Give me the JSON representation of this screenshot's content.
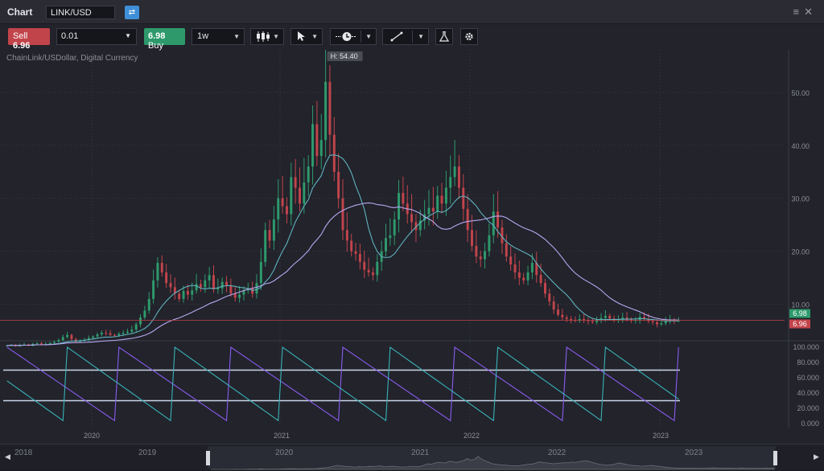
{
  "titlebar": {
    "title": "Chart",
    "symbol": "LINK/USD",
    "swap_icon": "swap-icon",
    "menu_icon": "hamburger-icon",
    "close_icon": "close-icon"
  },
  "toolbar": {
    "sell_label": "Sell",
    "sell_price": "6.96",
    "quantity": "0.01",
    "buy_price": "6.98",
    "buy_label": "Buy",
    "timeframe": "1w",
    "chart_type_icon": "candlestick-icon",
    "cursor_icon": "cursor-icon",
    "time_icon": "clock-icon",
    "draw_icon": "line-tool-icon",
    "indicators_icon": "flask-icon",
    "settings_icon": "gear-icon"
  },
  "colors": {
    "up": "#2e9a6c",
    "down": "#c2444b",
    "ma_fast": "#5fb3bf",
    "ma_slow": "#b8a8f0",
    "osc_a": "#8a5cf0",
    "osc_b": "#39b3b8"
  },
  "chart": {
    "subtitle": "ChainLink/USDollar, Digital Currency",
    "high_label": "H: 54.40",
    "ask_tag": "6.98",
    "bid_tag": "6.96",
    "y_ticks": [
      "50.00",
      "40.00",
      "30.00",
      "20.00",
      "10.00"
    ],
    "osc_ticks": [
      "100.000",
      "80.000",
      "60.000",
      "40.000",
      "20.000",
      "0.000"
    ],
    "x_labels": [
      "2020",
      "2021",
      "2022",
      "2023"
    ]
  },
  "chart_data": {
    "type": "candlestick",
    "timeframe": "1w",
    "y_ticks": [
      10,
      20,
      30,
      40,
      50
    ],
    "ylim": [
      4,
      55
    ],
    "high": 54.4,
    "bid": 6.96,
    "ask": 6.98,
    "x_labels": [
      "2020",
      "2021",
      "2022",
      "2023"
    ],
    "oscillator_ticks": [
      0,
      20,
      40,
      60,
      80,
      100
    ],
    "oscillator_ylim": [
      0,
      100
    ],
    "oscillator_levels": [
      70,
      30
    ],
    "closes": [
      2.2,
      2.3,
      2.1,
      2.3,
      2.4,
      2.2,
      2.5,
      2.6,
      2.4,
      2.5,
      2.7,
      2.9,
      3.2,
      3.8,
      4.2,
      3.4,
      2.9,
      3.1,
      3.3,
      3.6,
      3.9,
      4.3,
      4.6,
      4.5,
      4.2,
      4.1,
      4.4,
      4.6,
      4.8,
      5.2,
      6.2,
      7.5,
      8.8,
      11.0,
      14.5,
      17.8,
      16.0,
      14.0,
      13.2,
      12.0,
      11.0,
      12.5,
      11.8,
      12.6,
      13.8,
      13.2,
      14.5,
      15.5,
      12.8,
      13.0,
      14.2,
      13.5,
      12.0,
      11.2,
      11.8,
      12.6,
      13.0,
      12.0,
      14.0,
      18.0,
      24.0,
      22.0,
      26.0,
      30.0,
      28.5,
      27.0,
      34.0,
      32.0,
      29.0,
      33.0,
      36.0,
      44.0,
      38.0,
      41.0,
      52.0,
      42.0,
      35.0,
      30.0,
      24.0,
      22.0,
      20.0,
      19.5,
      18.0,
      16.5,
      16.0,
      15.5,
      18.0,
      20.0,
      22.5,
      23.0,
      26.0,
      31.0,
      29.0,
      27.0,
      25.5,
      24.0,
      25.8,
      27.0,
      28.2,
      27.5,
      30.5,
      29.0,
      32.0,
      34.0,
      36.0,
      32.0,
      28.0,
      24.0,
      21.0,
      19.0,
      18.5,
      20.0,
      23.0,
      27.5,
      24.5,
      21.5,
      19.0,
      17.5,
      16.0,
      15.0,
      14.5,
      16.0,
      17.8,
      15.5,
      14.0,
      12.0,
      10.5,
      9.0,
      8.0,
      7.5,
      7.2,
      7.0,
      6.9,
      7.2,
      7.0,
      6.8,
      6.6,
      7.0,
      7.4,
      7.8,
      7.3,
      7.0,
      7.2,
      7.5,
      7.1,
      6.9,
      7.0,
      7.6,
      7.2,
      6.8,
      6.6,
      6.2,
      6.4,
      6.8,
      7.0,
      6.9,
      6.96
    ]
  }
}
